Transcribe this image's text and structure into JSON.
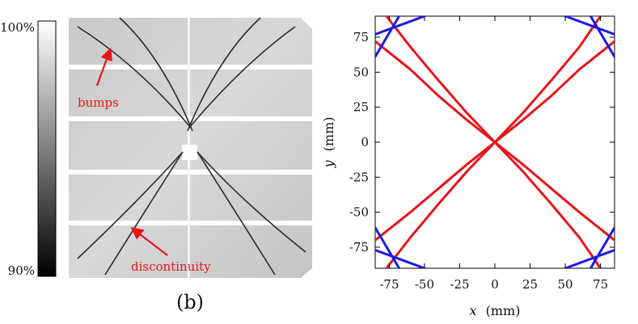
{
  "colorbar": {
    "max_label": "100%",
    "min_label": "90%"
  },
  "image_panel": {
    "caption": "(b)",
    "annotations": {
      "bumps": "bumps",
      "discontinuity": "discontinuity"
    },
    "annotation_color": "#e8151b"
  },
  "chart_data": {
    "type": "line",
    "title": "",
    "xlabel_var": "x",
    "xlabel_unit": "(mm)",
    "ylabel_var": "y",
    "ylabel_unit": "(mm)",
    "xlim": [
      -85,
      85
    ],
    "ylim": [
      -90,
      90
    ],
    "xticks": [
      -75,
      -50,
      -25,
      0,
      25,
      50,
      75
    ],
    "yticks": [
      -75,
      -50,
      -25,
      0,
      25,
      50,
      75
    ],
    "grid": false,
    "colors": {
      "red": "#e8151b",
      "blue": "#1a1ae6"
    },
    "series": [
      {
        "color": "red",
        "x": [
          -85,
          -60,
          -40,
          -20,
          0,
          20,
          40,
          60,
          85
        ],
        "y": [
          -70,
          -50,
          -33,
          -16,
          0,
          16,
          33,
          52,
          72
        ]
      },
      {
        "color": "red",
        "x": [
          -85,
          -60,
          -40,
          -20,
          0,
          20,
          40,
          60,
          85
        ],
        "y": [
          72,
          52,
          33,
          16,
          0,
          -16,
          -33,
          -50,
          -70
        ]
      },
      {
        "color": "red",
        "x": [
          -77,
          -60,
          -40,
          -20,
          0,
          20,
          40,
          60,
          75
        ],
        "y": [
          -90,
          -68,
          -44,
          -21,
          0,
          21,
          44,
          68,
          90
        ]
      },
      {
        "color": "red",
        "x": [
          -77,
          -60,
          -40,
          -20,
          0,
          20,
          40,
          60,
          75
        ],
        "y": [
          90,
          68,
          44,
          21,
          0,
          -21,
          -44,
          -68,
          -90
        ]
      },
      {
        "color": "blue",
        "x": [
          -85,
          -68
        ],
        "y": [
          61,
          90
        ]
      },
      {
        "color": "blue",
        "x": [
          -85,
          -50
        ],
        "y": [
          77,
          90
        ]
      },
      {
        "color": "blue",
        "x": [
          85,
          68
        ],
        "y": [
          61,
          90
        ]
      },
      {
        "color": "blue",
        "x": [
          85,
          50
        ],
        "y": [
          77,
          90
        ]
      },
      {
        "color": "blue",
        "x": [
          -85,
          -68
        ],
        "y": [
          -61,
          -90
        ]
      },
      {
        "color": "blue",
        "x": [
          -85,
          -50
        ],
        "y": [
          -77,
          -90
        ]
      },
      {
        "color": "blue",
        "x": [
          85,
          68
        ],
        "y": [
          -61,
          -90
        ]
      },
      {
        "color": "blue",
        "x": [
          85,
          50
        ],
        "y": [
          -77,
          -90
        ]
      }
    ]
  }
}
